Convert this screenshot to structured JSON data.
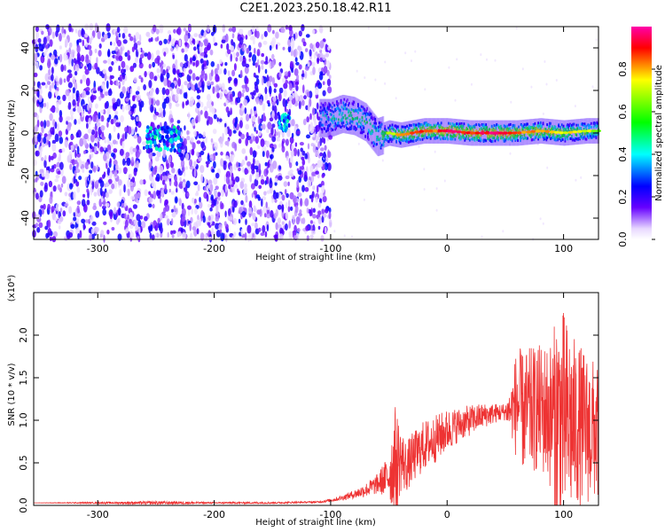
{
  "title": "C2E1.2023.250.18.42.R11",
  "chart_data": [
    {
      "type": "heatmap",
      "xlabel": "Height of straight line (km)",
      "ylabel": "Frequency (Hz)",
      "xlim": [
        -355,
        130
      ],
      "ylim": [
        -50,
        50
      ],
      "xticks": [
        -300,
        -200,
        -100,
        0,
        100
      ],
      "yticks": [
        -40,
        -20,
        0,
        20,
        40
      ],
      "colorbar": {
        "label": "Normalized spectral amplitude",
        "range": [
          0.0,
          1.0
        ],
        "ticks": [
          "0.0",
          "0.2",
          "0.4",
          "0.6",
          "0.8"
        ],
        "colors": [
          "#ffffff",
          "#6600ff",
          "#0000ff",
          "#00ffff",
          "#00ff00",
          "#ffff00",
          "#ff0000",
          "#ff00aa"
        ]
      },
      "noise_region_x": [
        -355,
        -100
      ],
      "gap_band_x": [
        -262,
        -257
      ],
      "signal_track": [
        {
          "x": -255,
          "f": -3,
          "amp": 0.45
        },
        {
          "x": -245,
          "f": -2,
          "amp": 0.4
        },
        {
          "x": -235,
          "f": -3,
          "amp": 0.3
        },
        {
          "x": -140,
          "f": 7,
          "amp": 0.35
        },
        {
          "x": -100,
          "f": 7,
          "amp": 0.45
        },
        {
          "x": -90,
          "f": 9,
          "amp": 0.55
        },
        {
          "x": -80,
          "f": 8,
          "amp": 0.55
        },
        {
          "x": -70,
          "f": 5,
          "amp": 0.5
        },
        {
          "x": -60,
          "f": -2,
          "amp": 0.55
        },
        {
          "x": -50,
          "f": 0,
          "amp": 0.65
        },
        {
          "x": -40,
          "f": -1,
          "amp": 0.75
        },
        {
          "x": -30,
          "f": 0,
          "amp": 0.8
        },
        {
          "x": -20,
          "f": 1,
          "amp": 0.85
        },
        {
          "x": -10,
          "f": 1,
          "amp": 0.8
        },
        {
          "x": 0,
          "f": 1,
          "amp": 0.9
        },
        {
          "x": 20,
          "f": 0,
          "amp": 0.85
        },
        {
          "x": 40,
          "f": 0,
          "amp": 0.9
        },
        {
          "x": 60,
          "f": 0,
          "amp": 0.8
        },
        {
          "x": 80,
          "f": 1,
          "amp": 0.75
        },
        {
          "x": 100,
          "f": 0,
          "amp": 0.7
        },
        {
          "x": 120,
          "f": 1,
          "amp": 0.65
        },
        {
          "x": 130,
          "f": 1,
          "amp": 0.6
        }
      ]
    },
    {
      "type": "line",
      "xlabel": "Height of straight line (km)",
      "ylabel": "SNR (10 * v/v)",
      "multiplier_label": "(x10⁴)",
      "xlim": [
        -355,
        130
      ],
      "ylim": [
        0,
        2.5
      ],
      "xticks": [
        -300,
        -200,
        -100,
        0,
        100
      ],
      "yticks": [
        "0.0",
        "0.5",
        "1.0",
        "1.5",
        "2.0"
      ],
      "color": "#ee3333",
      "series": [
        {
          "x": [
            -355,
            -300,
            -250,
            -200,
            -150,
            -110,
            -100,
            -90,
            -80,
            -70,
            -60,
            -50,
            -45,
            -40,
            -35,
            -30,
            -20,
            -10,
            0,
            10,
            20,
            30,
            40,
            50,
            55,
            60,
            65,
            70,
            80,
            90,
            95,
            100,
            110,
            120,
            130
          ],
          "values": [
            0.03,
            0.03,
            0.03,
            0.03,
            0.03,
            0.04,
            0.06,
            0.09,
            0.13,
            0.18,
            0.25,
            0.35,
            0.5,
            0.55,
            0.45,
            0.55,
            0.7,
            0.78,
            0.88,
            0.95,
            1.0,
            1.05,
            1.08,
            1.1,
            1.12,
            1.2,
            1.1,
            1.1,
            1.15,
            1.05,
            1.0,
            1.0,
            0.95,
            0.9,
            0.85
          ],
          "envelope": [
            0.0,
            0.01,
            0.02,
            0.01,
            0.01,
            0.01,
            0.02,
            0.03,
            0.05,
            0.08,
            0.12,
            0.25,
            0.7,
            0.4,
            0.3,
            0.3,
            0.3,
            0.28,
            0.25,
            0.2,
            0.18,
            0.15,
            0.12,
            0.1,
            0.3,
            0.7,
            0.7,
            0.75,
            0.75,
            0.9,
            1.4,
            1.3,
            1.0,
            0.9,
            0.8
          ]
        }
      ]
    }
  ]
}
